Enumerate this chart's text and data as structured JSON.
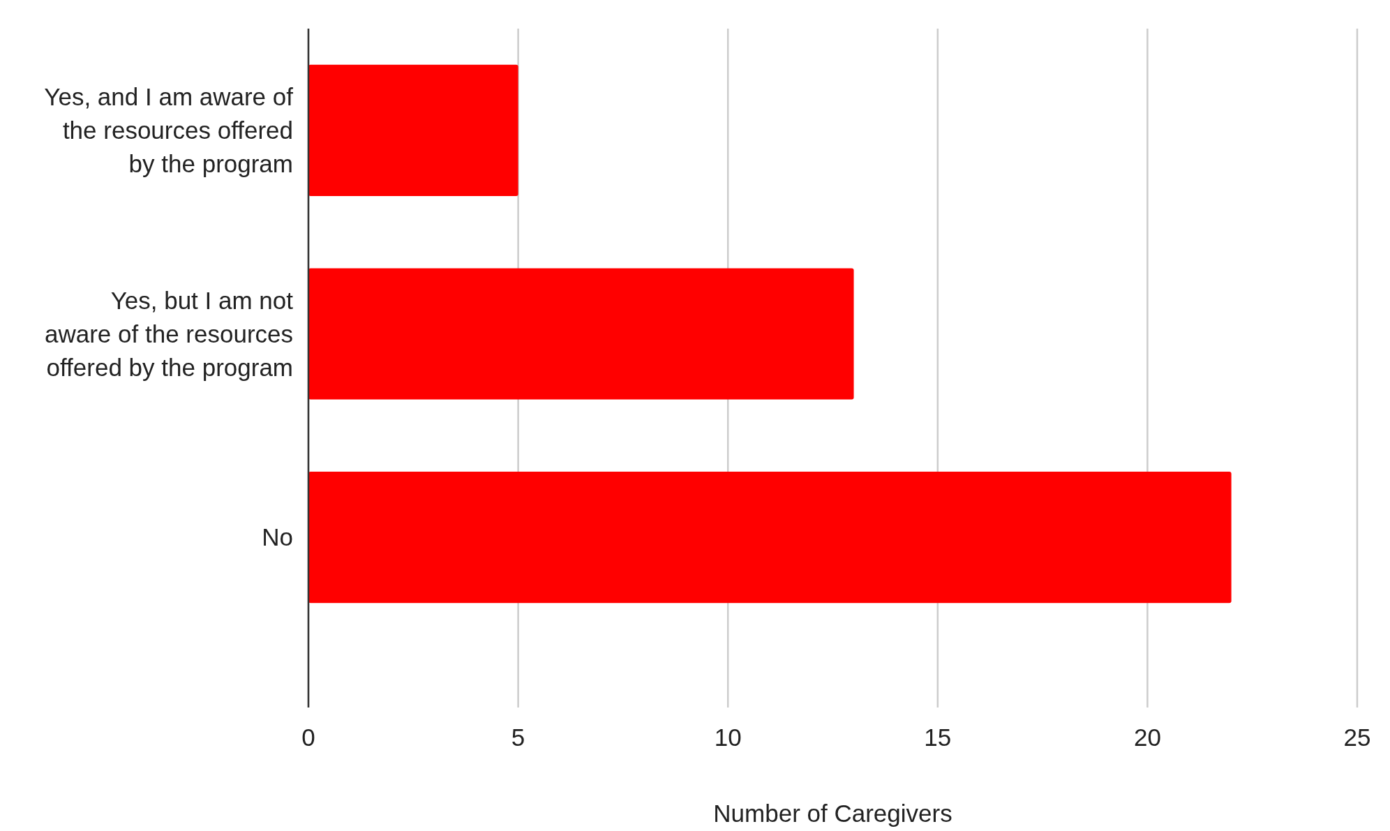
{
  "chart_data": {
    "type": "bar",
    "orientation": "horizontal",
    "categories": [
      "Yes, and I am aware of the resources offered by the program",
      "Yes, but I am not aware of the resources offered by the program",
      "No"
    ],
    "values": [
      5,
      13,
      22
    ],
    "color": "#ff0000",
    "xlim": [
      0,
      25
    ],
    "xticks": [
      0,
      5,
      10,
      15,
      20,
      25
    ],
    "grid": "x",
    "xlabel": "Number of Caregivers"
  }
}
